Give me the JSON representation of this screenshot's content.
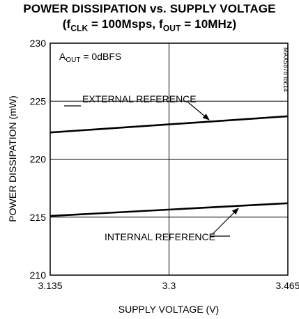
{
  "chart_data": {
    "type": "line",
    "title": "POWER DISSIPATION vs. SUPPLY VOLTAGE",
    "subtitle": "(fCLK = 100Msps, fOUT = 10MHz)",
    "xlabel": "SUPPLY VOLTAGE (V)",
    "ylabel": "POWER DISSIPATION (mW)",
    "xlim": [
      3.135,
      3.465
    ],
    "ylim": [
      210,
      230
    ],
    "xticks": [
      "3.135",
      "3.3",
      "3.465"
    ],
    "yticks": [
      "210",
      "215",
      "220",
      "225",
      "230"
    ],
    "grid": true,
    "annotation": "AOUT = 0dBFS",
    "annotation_parts": {
      "main": "A",
      "sub": "OUT",
      "rest": " = 0dBFS"
    },
    "watermark": "MAX5878 toc14",
    "series": [
      {
        "name": "EXTERNAL REFERENCE",
        "x": [
          3.135,
          3.465
        ],
        "values": [
          222.3,
          223.7
        ],
        "color": "#000000"
      },
      {
        "name": "INTERNAL REFERENCE",
        "x": [
          3.135,
          3.465
        ],
        "values": [
          215.1,
          216.2
        ],
        "color": "#000000"
      }
    ]
  }
}
